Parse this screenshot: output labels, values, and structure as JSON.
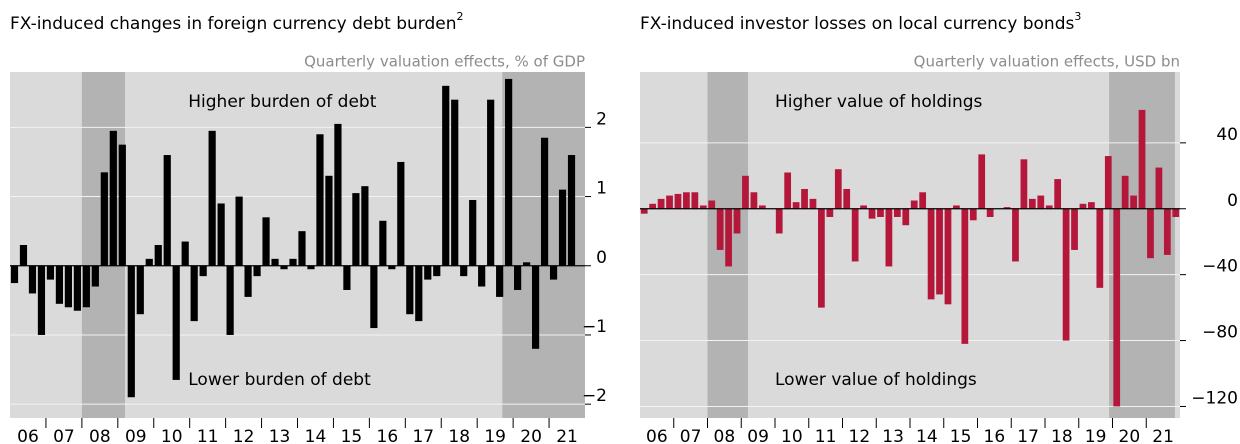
{
  "chart_data": [
    {
      "type": "bar",
      "title": "FX-induced changes in foreign currency debt burden",
      "title_note": "2",
      "subtitle": "Quarterly valuation effects, % of GDP",
      "annotations": [
        "Higher burden of debt",
        "Lower burden of debt"
      ],
      "color": "#000000",
      "grid": true,
      "shading_color": "#b3b3b3",
      "shading": [
        [
          2008.0,
          2009.2
        ],
        [
          2019.7,
          2022.0
        ]
      ],
      "x": [
        2006.125,
        2006.375,
        2006.625,
        2006.875,
        2007.125,
        2007.375,
        2007.625,
        2007.875,
        2008.125,
        2008.375,
        2008.625,
        2008.875,
        2009.125,
        2009.375,
        2009.625,
        2009.875,
        2010.125,
        2010.375,
        2010.625,
        2010.875,
        2011.125,
        2011.375,
        2011.625,
        2011.875,
        2012.125,
        2012.375,
        2012.625,
        2012.875,
        2013.125,
        2013.375,
        2013.625,
        2013.875,
        2014.125,
        2014.375,
        2014.625,
        2014.875,
        2015.125,
        2015.375,
        2015.625,
        2015.875,
        2016.125,
        2016.375,
        2016.625,
        2016.875,
        2017.125,
        2017.375,
        2017.625,
        2017.875,
        2018.125,
        2018.375,
        2018.625,
        2018.875,
        2019.125,
        2019.375,
        2019.625,
        2019.875,
        2020.125,
        2020.375,
        2020.625,
        2020.875,
        2021.125,
        2021.375,
        2021.625
      ],
      "values": [
        -0.25,
        0.3,
        -0.4,
        -1.0,
        -0.2,
        -0.55,
        -0.6,
        -0.65,
        -0.6,
        -0.3,
        1.35,
        1.95,
        1.75,
        -1.9,
        -0.7,
        0.1,
        0.3,
        1.6,
        -1.65,
        0.35,
        -0.8,
        -0.15,
        1.95,
        0.9,
        -1.0,
        1.0,
        -0.45,
        -0.15,
        0.7,
        0.1,
        -0.05,
        0.1,
        0.5,
        -0.05,
        1.9,
        1.3,
        2.05,
        -0.35,
        1.05,
        1.15,
        -0.9,
        0.65,
        -0.05,
        1.5,
        -0.7,
        -0.8,
        -0.2,
        -0.15,
        2.6,
        2.4,
        -0.15,
        0.95,
        -0.3,
        2.4,
        -0.45,
        2.7,
        -0.35,
        0.05,
        -1.2,
        1.85,
        -0.2,
        1.1,
        1.6
      ],
      "xlim": [
        2006,
        2022
      ],
      "xticks": [
        {
          "value": 2006.5,
          "label": "06"
        },
        {
          "value": 2007.5,
          "label": "07"
        },
        {
          "value": 2008.5,
          "label": "08"
        },
        {
          "value": 2009.5,
          "label": "09"
        },
        {
          "value": 2010.5,
          "label": "10"
        },
        {
          "value": 2011.5,
          "label": "11"
        },
        {
          "value": 2012.5,
          "label": "12"
        },
        {
          "value": 2013.5,
          "label": "13"
        },
        {
          "value": 2014.5,
          "label": "14"
        },
        {
          "value": 2015.5,
          "label": "15"
        },
        {
          "value": 2016.5,
          "label": "16"
        },
        {
          "value": 2017.5,
          "label": "17"
        },
        {
          "value": 2018.5,
          "label": "18"
        },
        {
          "value": 2019.5,
          "label": "19"
        },
        {
          "value": 2020.5,
          "label": "20"
        },
        {
          "value": 2021.5,
          "label": "21"
        }
      ],
      "xminorticks": [
        2007,
        2008,
        2009,
        2010,
        2011,
        2012,
        2013,
        2014,
        2015,
        2016,
        2017,
        2018,
        2019,
        2020,
        2021
      ],
      "ylim": [
        -2.2,
        2.8
      ],
      "yticks": [
        {
          "value": -2,
          "label": "−2"
        },
        {
          "value": -1,
          "label": "−1"
        },
        0,
        1,
        2
      ]
    },
    {
      "type": "bar",
      "title": "FX-induced investor losses on local currency bonds",
      "title_note": "3",
      "subtitle": "Quarterly valuation effects, USD bn",
      "annotations": [
        "Higher value of holdings",
        "Lower value of holdings"
      ],
      "color": "#b5173a",
      "grid": true,
      "shading_color": "#b3b3b3",
      "shading": [
        [
          2008.0,
          2009.2
        ],
        [
          2019.9,
          2021.85
        ]
      ],
      "x": [
        2006.125,
        2006.375,
        2006.625,
        2006.875,
        2007.125,
        2007.375,
        2007.625,
        2007.875,
        2008.125,
        2008.375,
        2008.625,
        2008.875,
        2009.125,
        2009.375,
        2009.625,
        2009.875,
        2010.125,
        2010.375,
        2010.625,
        2010.875,
        2011.125,
        2011.375,
        2011.625,
        2011.875,
        2012.125,
        2012.375,
        2012.625,
        2012.875,
        2013.125,
        2013.375,
        2013.625,
        2013.875,
        2014.125,
        2014.375,
        2014.625,
        2014.875,
        2015.125,
        2015.375,
        2015.625,
        2015.875,
        2016.125,
        2016.375,
        2016.625,
        2016.875,
        2017.125,
        2017.375,
        2017.625,
        2017.875,
        2018.125,
        2018.375,
        2018.625,
        2018.875,
        2019.125,
        2019.375,
        2019.625,
        2019.875,
        2020.125,
        2020.375,
        2020.625,
        2020.875,
        2021.125,
        2021.375,
        2021.625,
        2021.875
      ],
      "values": [
        -3,
        3,
        6,
        8,
        9,
        10,
        10,
        2,
        5,
        -25,
        -35,
        -15,
        20,
        10,
        2,
        0,
        -15,
        22,
        4,
        12,
        6,
        -60,
        -5,
        24,
        12,
        -32,
        2,
        -6,
        -5,
        -35,
        -5,
        -10,
        5,
        10,
        -55,
        -52,
        -58,
        2,
        -82,
        -7,
        33,
        -5,
        0,
        1,
        -32,
        30,
        6,
        8,
        2,
        18,
        -80,
        -25,
        3,
        4,
        -48,
        32,
        -120,
        20,
        8,
        60,
        -30,
        25,
        -28,
        -5
      ],
      "xlim": [
        2006,
        2022
      ],
      "xticks": [
        {
          "value": 2006.5,
          "label": "06"
        },
        {
          "value": 2007.5,
          "label": "07"
        },
        {
          "value": 2008.5,
          "label": "08"
        },
        {
          "value": 2009.5,
          "label": "09"
        },
        {
          "value": 2010.5,
          "label": "10"
        },
        {
          "value": 2011.5,
          "label": "11"
        },
        {
          "value": 2012.5,
          "label": "12"
        },
        {
          "value": 2013.5,
          "label": "13"
        },
        {
          "value": 2014.5,
          "label": "14"
        },
        {
          "value": 2015.5,
          "label": "15"
        },
        {
          "value": 2016.5,
          "label": "16"
        },
        {
          "value": 2017.5,
          "label": "17"
        },
        {
          "value": 2018.5,
          "label": "18"
        },
        {
          "value": 2019.5,
          "label": "19"
        },
        {
          "value": 2020.5,
          "label": "20"
        },
        {
          "value": 2021.5,
          "label": "21"
        }
      ],
      "xminorticks": [
        2007,
        2008,
        2009,
        2010,
        2011,
        2012,
        2013,
        2014,
        2015,
        2016,
        2017,
        2018,
        2019,
        2020,
        2021
      ],
      "ylim": [
        -127,
        83
      ],
      "yticks": [
        {
          "value": -120,
          "label": "−120"
        },
        {
          "value": -80,
          "label": "−80"
        },
        {
          "value": -40,
          "label": "−40"
        },
        0,
        40
      ]
    }
  ]
}
